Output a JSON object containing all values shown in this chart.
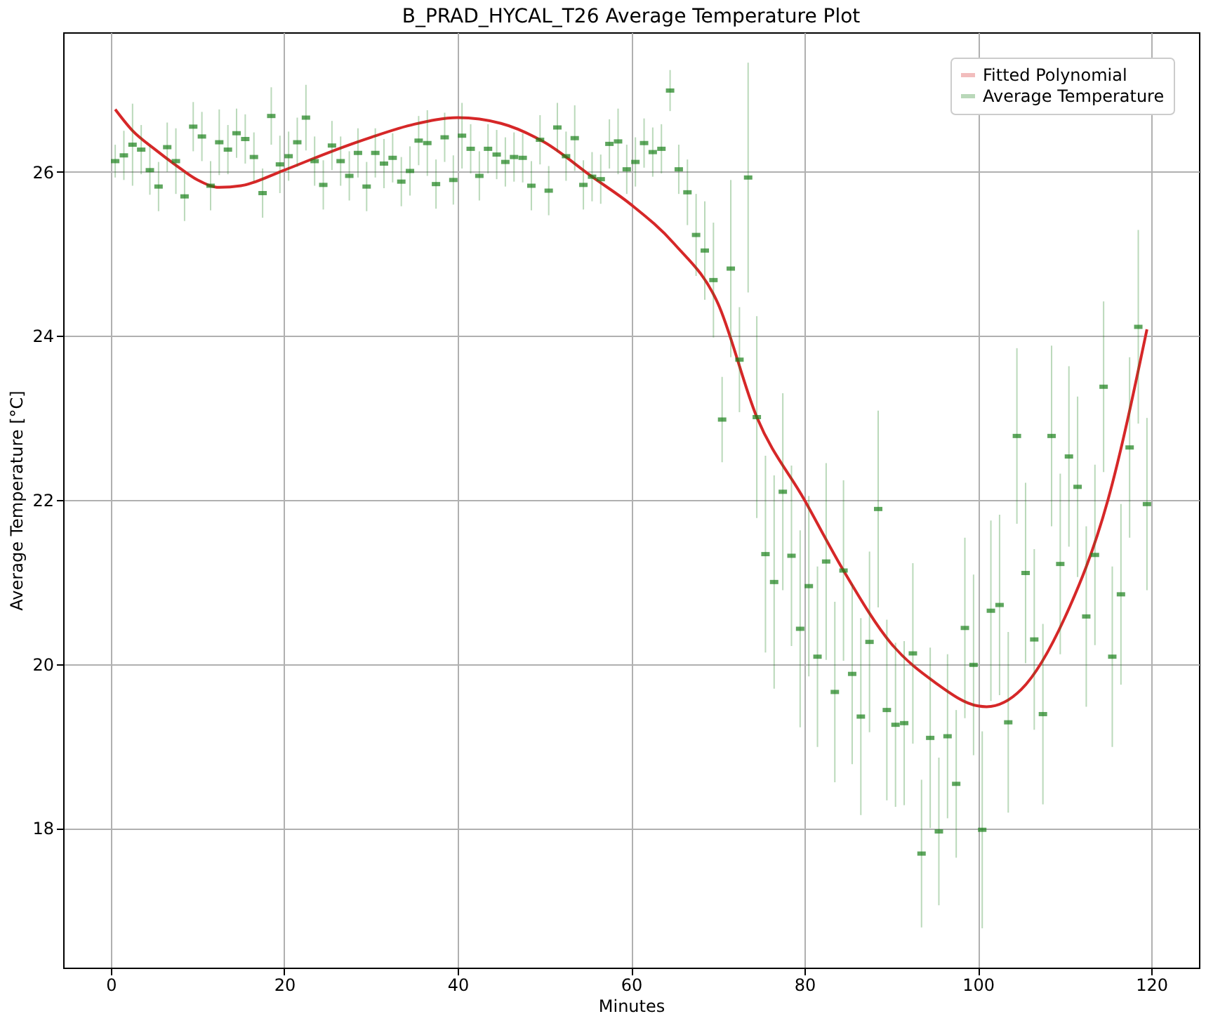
{
  "chart_data": {
    "type": "scatter",
    "title": "B_PRAD_HYCAL_T26 Average Temperature Plot",
    "xlabel": "Minutes",
    "ylabel": "Average Temperature [°C]",
    "xlim": [
      -5.5,
      125.5
    ],
    "ylim": [
      16.3,
      27.7
    ],
    "xticks": [
      0,
      20,
      40,
      60,
      80,
      100,
      120
    ],
    "yticks": [
      18,
      20,
      22,
      24,
      26
    ],
    "grid": true,
    "legend": "top right",
    "series": [
      {
        "name": "Fitted Polynomial",
        "type": "line",
        "color": "#d62728",
        "x": [
          0.5,
          2.5,
          5,
          7.5,
          10,
          12.5,
          15,
          20,
          25,
          30,
          35,
          40,
          45,
          50,
          55.5,
          60,
          65,
          70,
          74.5,
          80,
          84.5,
          90,
          95,
          100,
          101,
          105,
          110,
          115,
          119.5
        ],
        "values": [
          26.76,
          26.5,
          26.28,
          26.08,
          25.9,
          25.81,
          25.83,
          26.02,
          26.23,
          26.42,
          26.58,
          26.66,
          26.59,
          26.36,
          25.94,
          25.6,
          25.12,
          24.4,
          23.01,
          22.0,
          21.14,
          20.25,
          19.78,
          19.49,
          19.48,
          19.69,
          20.56,
          22.0,
          24.08
        ]
      },
      {
        "name": "Average Temperature",
        "color": "#1a801a",
        "x": [
          0.5,
          1.5,
          2.5,
          3.5,
          4.5,
          5.5,
          6.5,
          7.5,
          8.5,
          9.5,
          10.5,
          11.5,
          12.5,
          13.5,
          14.5,
          15.5,
          16.5,
          17.5,
          18.5,
          19.5,
          20.5,
          21.5,
          22.5,
          23.5,
          24.5,
          25.5,
          26.5,
          27.5,
          28.5,
          29.5,
          30.5,
          31.5,
          32.5,
          33.5,
          34.5,
          35.5,
          36.5,
          37.5,
          38.5,
          39.5,
          40.5,
          41.5,
          42.5,
          43.5,
          44.5,
          45.5,
          46.5,
          47.5,
          48.5,
          49.5,
          50.5,
          51.5,
          52.5,
          53.5,
          54.5,
          55.5,
          56.5,
          57.5,
          58.5,
          59.5,
          60.5,
          61.5,
          62.5,
          63.5,
          64.5,
          65.5,
          66.5,
          67.5,
          68.5,
          69.5,
          70.5,
          71.5,
          72.5,
          73.5,
          74.5,
          75.5,
          76.5,
          77.5,
          78.5,
          79.5,
          80.5,
          81.5,
          82.5,
          83.5,
          84.5,
          85.5,
          86.5,
          87.5,
          88.5,
          89.5,
          90.5,
          91.5,
          92.5,
          93.5,
          94.5,
          95.5,
          96.5,
          97.5,
          98.5,
          99.5,
          100.5,
          101.5,
          102.5,
          103.5,
          104.5,
          105.5,
          106.5,
          107.5,
          108.5,
          109.5,
          110.5,
          111.5,
          112.5,
          113.5,
          114.5,
          115.5,
          116.5,
          117.5,
          118.5,
          119.5
        ],
        "values": [
          26.13,
          26.2,
          26.33,
          26.27,
          26.02,
          25.82,
          26.3,
          26.13,
          25.7,
          26.55,
          26.43,
          25.83,
          26.36,
          26.27,
          26.47,
          26.4,
          26.18,
          25.74,
          26.68,
          26.09,
          26.19,
          26.36,
          26.66,
          26.13,
          25.84,
          26.32,
          26.13,
          25.95,
          26.23,
          25.82,
          26.23,
          26.1,
          26.17,
          25.88,
          26.01,
          26.38,
          26.35,
          25.85,
          26.42,
          25.9,
          26.44,
          26.28,
          25.95,
          26.28,
          26.21,
          26.12,
          26.18,
          26.17,
          25.83,
          26.39,
          25.77,
          26.54,
          26.19,
          26.41,
          25.84,
          25.94,
          25.91,
          26.34,
          26.37,
          26.03,
          26.12,
          26.35,
          26.24,
          26.28,
          26.99,
          26.03,
          25.75,
          25.23,
          25.04,
          24.68,
          22.98,
          24.82,
          23.71,
          25.93,
          23.01,
          21.34,
          21.0,
          22.1,
          21.32,
          20.43,
          20.95,
          20.09,
          21.25,
          19.66,
          21.14,
          19.88,
          19.36,
          20.27,
          21.89,
          19.44,
          19.26,
          19.28,
          20.13,
          17.69,
          19.1,
          17.96,
          19.12,
          18.54,
          20.44,
          19.99,
          17.98,
          20.65,
          20.72,
          19.29,
          22.78,
          21.11,
          20.3,
          19.39,
          22.78,
          21.22,
          22.53,
          22.16,
          20.58,
          21.33,
          23.38,
          20.09,
          20.85,
          22.64,
          24.11,
          21.95
        ],
        "errors": [
          0.2,
          0.3,
          0.5,
          0.3,
          0.3,
          0.3,
          0.3,
          0.4,
          0.3,
          0.3,
          0.3,
          0.3,
          0.4,
          0.3,
          0.3,
          0.3,
          0.3,
          0.3,
          0.35,
          0.35,
          0.3,
          0.3,
          0.4,
          0.3,
          0.3,
          0.3,
          0.3,
          0.3,
          0.3,
          0.3,
          0.3,
          0.3,
          0.3,
          0.3,
          0.3,
          0.3,
          0.4,
          0.3,
          0.3,
          0.3,
          0.4,
          0.3,
          0.3,
          0.3,
          0.3,
          0.3,
          0.3,
          0.3,
          0.3,
          0.3,
          0.3,
          0.3,
          0.3,
          0.4,
          0.3,
          0.3,
          0.3,
          0.3,
          0.4,
          0.3,
          0.3,
          0.3,
          0.3,
          0.3,
          0.25,
          0.3,
          0.4,
          0.5,
          0.6,
          0.7,
          0.52,
          1.08,
          0.64,
          1.4,
          1.23,
          1.2,
          1.3,
          1.2,
          1.1,
          1.2,
          1.1,
          1.1,
          1.2,
          1.1,
          1.1,
          1.1,
          1.2,
          1.1,
          1.2,
          1.1,
          1.0,
          1.0,
          1.1,
          0.9,
          1.1,
          0.9,
          1.0,
          0.9,
          1.1,
          1.1,
          1.2,
          1.1,
          1.1,
          1.1,
          1.07,
          1.1,
          1.1,
          1.1,
          1.1,
          1.1,
          1.1,
          1.1,
          1.1,
          1.1,
          1.04,
          1.1,
          1.1,
          1.1,
          1.18,
          1.05
        ]
      }
    ]
  }
}
